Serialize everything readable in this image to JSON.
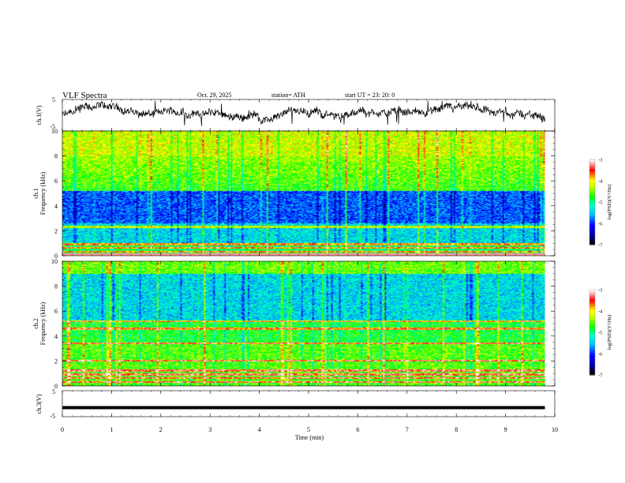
{
  "header": {
    "title": "VLF  Spectra",
    "date": "Oct. 29, 2025",
    "station": "station= ATH",
    "start_ut": "start  UT  =    23: 20: 0"
  },
  "chart_data": [
    {
      "type": "line",
      "panel": "ch1-waveform",
      "ylabel": "ch.1(V)",
      "y_ticks": [
        "5",
        "-5"
      ],
      "ylim": [
        -5,
        5
      ],
      "description_values": "noisy signal roughly between -3 and 3 V"
    },
    {
      "type": "heatmap",
      "panel": "ch1-spectrogram",
      "ylabel": "ch.1\nFrequency  (kHz)",
      "ylabel_line1": "ch.1",
      "ylabel_line2": "Frequency  (kHz)",
      "y_ticks": [
        "0",
        "2",
        "4",
        "6",
        "8",
        "10"
      ],
      "ylim": [
        0,
        10
      ],
      "colorbar": {
        "label": "log(PSD)(V²/Hz)",
        "ticks": [
          "-3",
          "-4",
          "-5",
          "-6",
          "-7"
        ],
        "range": [
          -7,
          -3
        ]
      },
      "features": {
        "low_power_band_khz": [
          2.6,
          5.2
        ],
        "high_power_top_khz": [
          8,
          10
        ],
        "tones_khz": [
          0.3,
          0.6,
          0.9,
          2.3
        ]
      }
    },
    {
      "type": "heatmap",
      "panel": "ch2-spectrogram",
      "ylabel_line1": "ch.2",
      "ylabel_line2": "Frequency  (kHz)",
      "y_ticks": [
        "0",
        "2",
        "4",
        "6",
        "8",
        "10"
      ],
      "ylim": [
        0,
        10
      ],
      "colorbar": {
        "label": "log(PSD)(V²/Hz)",
        "ticks": [
          "-3",
          "-4",
          "-5",
          "-6",
          "-7"
        ],
        "range": [
          -7,
          -3
        ]
      },
      "features": {
        "low_power_band_khz": [
          5.2,
          9
        ],
        "tones_khz": [
          0.3,
          0.6,
          0.9,
          1.2,
          2.0,
          3.4,
          4.6,
          5.2
        ]
      }
    },
    {
      "type": "line",
      "panel": "ch3-waveform",
      "ylabel": "ch.3(V)",
      "y_ticks": [
        "5",
        "-5"
      ],
      "ylim": [
        -5,
        5
      ],
      "constant_value": -1.5
    },
    {
      "type": "axis",
      "xlabel": "Time  (min)",
      "x_ticks": [
        "0",
        "1",
        "2",
        "3",
        "4",
        "5",
        "6",
        "7",
        "8",
        "9",
        "10"
      ],
      "xlim": [
        0,
        10
      ],
      "data_end_min": 9.8
    }
  ],
  "colors": {
    "axis": "#000000",
    "trace": "#000000",
    "colormap": [
      "#000000",
      "#0000ff",
      "#00ffff",
      "#00ff00",
      "#ffff00",
      "#ff0000",
      "#ffffff"
    ]
  }
}
